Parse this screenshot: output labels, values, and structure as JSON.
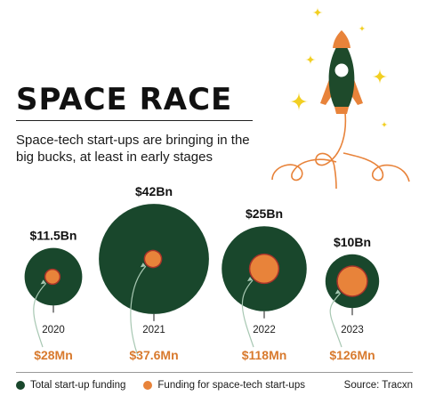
{
  "header": {
    "title": "SPACE RACE",
    "subtitle": "Space-tech start-ups are bringing in the big bucks, at least in early stages"
  },
  "colors": {
    "total": "#19472c",
    "space": "#e8833a",
    "space_ring": "#a8332a",
    "total_label": "#111111",
    "space_label": "#d87a2e",
    "arrow": "#a7c7b2",
    "rocket_body": "#1e4a2b",
    "rocket_fin": "#e8833a",
    "star": "#f2cf22"
  },
  "chart_data": {
    "type": "bubble",
    "categories": [
      "2020",
      "2021",
      "2022",
      "2023"
    ],
    "series": [
      {
        "name": "Total start-up funding",
        "values": [
          11.5,
          42,
          25,
          10
        ],
        "labels": [
          "$11.5Bn",
          "$42Bn",
          "$25Bn",
          "$10Bn"
        ],
        "unit": "Bn"
      },
      {
        "name": "Funding for space-tech start-ups",
        "values": [
          28,
          37.6,
          118,
          126
        ],
        "labels": [
          "$28Mn",
          "$37.6Mn",
          "$118Mn",
          "$126Mn"
        ],
        "unit": "Mn"
      }
    ]
  },
  "legend": {
    "items": [
      {
        "label": "Total start-up funding",
        "color": "#19472c"
      },
      {
        "label": "Funding for space-tech start-ups",
        "color": "#e8833a"
      }
    ],
    "source": "Source: Tracxn"
  }
}
